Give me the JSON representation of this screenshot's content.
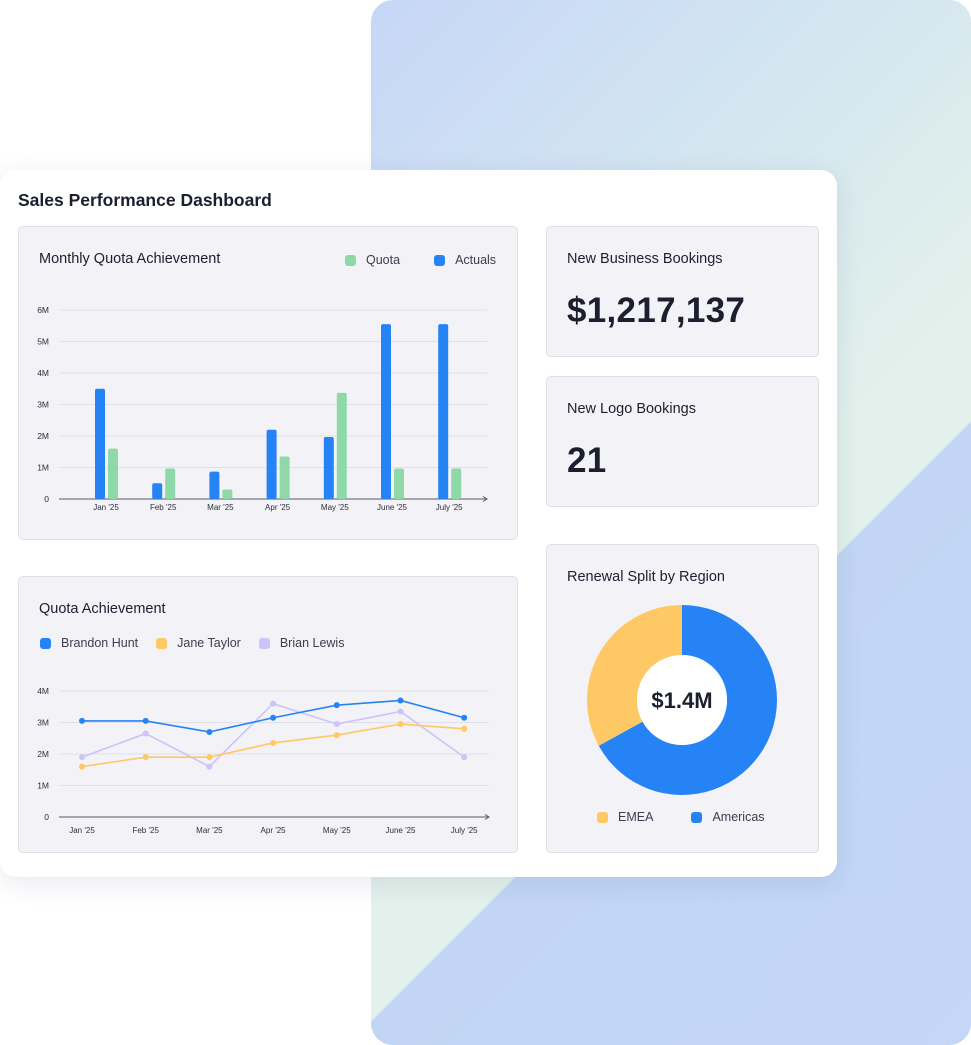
{
  "dashboard": {
    "title": "Sales Performance Dashboard"
  },
  "kpis": {
    "new_business": {
      "label": "New Business Bookings",
      "value": "$1,217,137"
    },
    "new_logo": {
      "label": "New Logo Bookings",
      "value": "21"
    }
  },
  "colors": {
    "quota": "#8fd9a8",
    "actuals": "#2583f6",
    "brandon": "#2583f6",
    "jane": "#fec965",
    "brian": "#cbc3fa",
    "emea": "#fec965",
    "americas": "#2583f6"
  },
  "chart_data": [
    {
      "type": "bar",
      "title": "Monthly Quota Achievement",
      "categories": [
        "Jan '25",
        "Feb '25",
        "Mar '25",
        "Apr '25",
        "May '25",
        "June '25",
        "July '25"
      ],
      "series": [
        {
          "name": "Actuals",
          "values": [
            3.5,
            0.5,
            0.87,
            2.2,
            1.97,
            5.55,
            5.55
          ]
        },
        {
          "name": "Quota",
          "values": [
            1.6,
            0.97,
            0.3,
            1.35,
            3.37,
            0.97,
            0.97
          ]
        }
      ],
      "yticks": [
        "0",
        "1M",
        "2M",
        "3M",
        "4M",
        "5M",
        "6M"
      ],
      "ylim": [
        0,
        6
      ],
      "grid": true,
      "legend": "top-right"
    },
    {
      "type": "line",
      "title": "Quota Achievement",
      "categories": [
        "Jan '25",
        "Feb '25",
        "Mar '25",
        "Apr '25",
        "May '25",
        "June '25",
        "July '25"
      ],
      "series": [
        {
          "name": "Brandon Hunt",
          "values": [
            3.05,
            3.05,
            2.7,
            3.15,
            3.55,
            3.7,
            3.15
          ]
        },
        {
          "name": "Jane Taylor",
          "values": [
            1.6,
            1.9,
            1.9,
            2.35,
            2.6,
            2.95,
            2.8
          ]
        },
        {
          "name": "Brian Lewis",
          "values": [
            1.9,
            2.65,
            1.6,
            3.6,
            2.95,
            3.35,
            1.9
          ]
        }
      ],
      "yticks": [
        "0",
        "1M",
        "2M",
        "3M",
        "4M"
      ],
      "ylim": [
        0,
        4
      ],
      "grid": true,
      "legend": "top-left"
    },
    {
      "type": "pie",
      "title": "Renewal Split by Region",
      "center_label": "$1.4M",
      "labels": [
        "EMEA",
        "Americas"
      ],
      "values": [
        33,
        67
      ],
      "legend": "bottom"
    }
  ]
}
